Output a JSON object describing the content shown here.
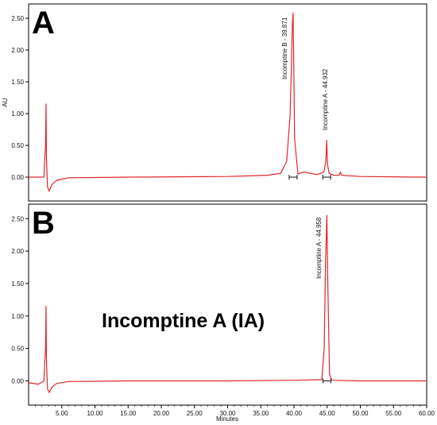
{
  "chart_data": [
    {
      "type": "line",
      "panel_label": "A",
      "ylabel": "AU",
      "xlabel": "",
      "xlim": [
        0,
        60
      ],
      "ylim": [
        -0.3,
        2.65
      ],
      "yticks": [
        "0.00",
        "0.50",
        "1.00",
        "1.50",
        "2.00",
        "2.50"
      ],
      "xticks": [],
      "line_color": "#e0262b",
      "peaks": [
        {
          "name": "",
          "rt": 2.6,
          "height": 1.15
        },
        {
          "name": "Incomptine B",
          "rt": 39.871,
          "height": 2.58,
          "label": "Incomptine B - 39.871"
        },
        {
          "name": "Incomptine A",
          "rt": 44.932,
          "height": 0.58,
          "label": "Incomptine A - 44.932"
        }
      ],
      "series": [
        {
          "x": [
            0,
            2.3,
            2.55,
            2.62,
            2.7,
            2.85,
            3.1,
            3.5,
            4.2,
            6,
            15,
            30,
            36,
            38,
            38.9,
            39.4,
            39.6,
            39.75,
            39.871,
            39.95,
            40.1,
            40.6,
            41.5,
            43.5,
            44.5,
            44.8,
            44.932,
            45.05,
            45.3,
            46,
            46.8,
            47,
            47.2,
            50,
            60
          ],
          "y": [
            0,
            0,
            0.5,
            1.15,
            0.3,
            -0.15,
            -0.22,
            -0.12,
            -0.05,
            -0.01,
            0,
            0.01,
            0.03,
            0.06,
            0.25,
            0.95,
            1.7,
            2.4,
            2.58,
            1.9,
            0.6,
            0.05,
            0.08,
            0.04,
            0.08,
            0.25,
            0.58,
            0.2,
            0.06,
            0.03,
            0.03,
            0.08,
            0.03,
            0.01,
            0
          ]
        }
      ]
    },
    {
      "type": "line",
      "panel_label": "B",
      "ylabel": "",
      "xlabel": "Minutes",
      "xlim": [
        0,
        60
      ],
      "ylim": [
        -0.3,
        2.65
      ],
      "yticks": [
        "0.00",
        "0.50",
        "1.00",
        "1.50",
        "2.00",
        "2.50"
      ],
      "xticks": [
        "5.00",
        "10.00",
        "15.00",
        "20.00",
        "25.00",
        "30.00",
        "35.00",
        "40.00",
        "45.00",
        "50.00",
        "55.00",
        "60.00"
      ],
      "line_color": "#e0262b",
      "annotation": "Incomptine A (IA)",
      "peaks": [
        {
          "name": "",
          "rt": 2.6,
          "height": 1.15
        },
        {
          "name": "Incomptine A",
          "rt": 44.958,
          "height": 2.55,
          "label": "Incomptine A - 44.958"
        }
      ],
      "series": [
        {
          "x": [
            0,
            1.5,
            2.3,
            2.55,
            2.62,
            2.7,
            2.85,
            3.1,
            3.5,
            4.2,
            6,
            15,
            30,
            40,
            44.2,
            44.55,
            44.75,
            44.958,
            45.1,
            45.35,
            45.7,
            50,
            60
          ],
          "y": [
            -0.03,
            -0.05,
            0,
            0.5,
            1.15,
            0.3,
            -0.12,
            -0.18,
            -0.1,
            -0.04,
            -0.01,
            0,
            0,
            0.01,
            0.02,
            0.5,
            1.8,
            2.55,
            1.5,
            0.1,
            0.01,
            0,
            0
          ]
        }
      ]
    }
  ]
}
